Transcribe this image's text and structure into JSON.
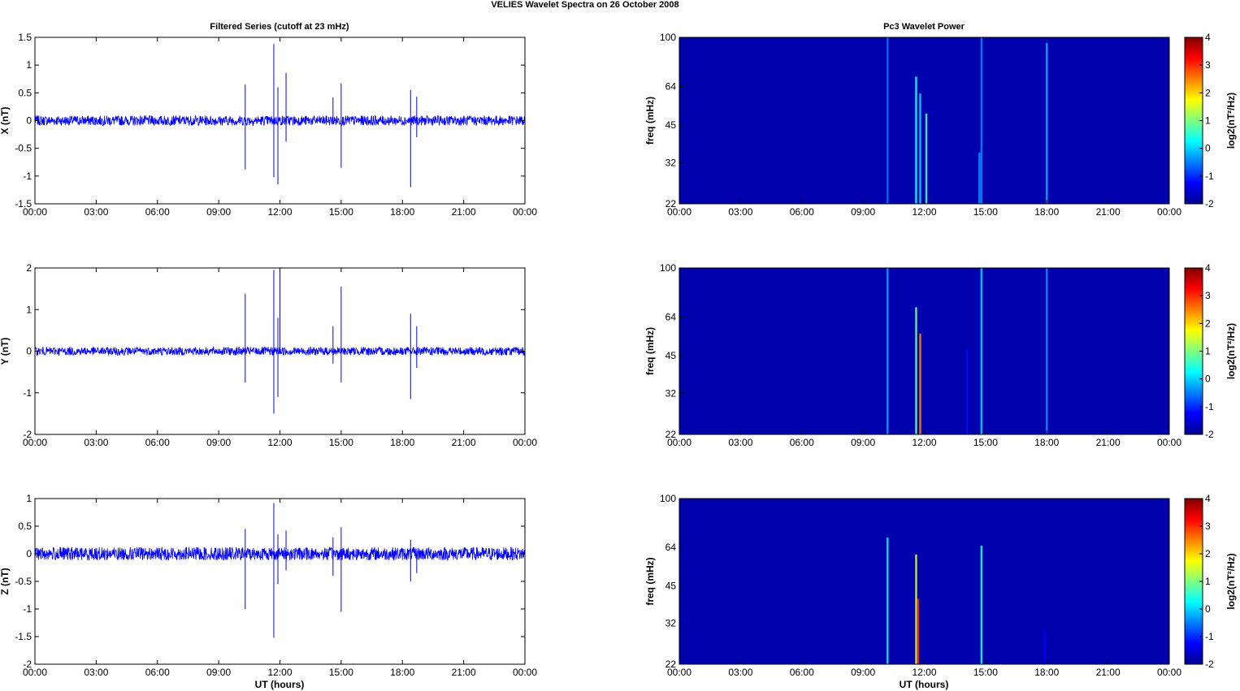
{
  "figure": {
    "suptitle": "VELIES Wavelet Spectra on 26 October   2008",
    "left_column_title": "Filtered Series (cutoff at 23 mHz)",
    "right_column_title": "Pc3 Wavelet Power",
    "xlabel": "UT (hours)"
  },
  "colors": {
    "trace": "#0000ff",
    "spectrum_background": "#00008f",
    "axes": "#000000"
  },
  "chart_data": [
    {
      "type": "line",
      "component": "X",
      "ylabel": "X (nT)",
      "xlim": [
        0,
        24
      ],
      "ylim": [
        -1.5,
        1.5
      ],
      "x_ticks": [
        "00:00",
        "03:00",
        "06:00",
        "09:00",
        "12:00",
        "15:00",
        "18:00",
        "21:00",
        "00:00"
      ],
      "y_ticks": [
        "1.5",
        "1",
        "0.5",
        "0",
        "-0.5",
        "-1",
        "-1.5"
      ],
      "noise_band_nT": 0.09,
      "series": [
        {
          "x": [
            10.3,
            10.3,
            11.7,
            11.7,
            11.9,
            11.9,
            12.3,
            12.3,
            14.6,
            15.0,
            15.0,
            18.4,
            18.4,
            18.7,
            18.7
          ],
          "y": [
            0.65,
            -0.88,
            1.38,
            -1.02,
            0.6,
            -1.15,
            0.86,
            -0.38,
            0.42,
            0.67,
            -0.85,
            0.55,
            -1.2,
            0.43,
            -0.3
          ]
        }
      ]
    },
    {
      "type": "line",
      "component": "Y",
      "ylabel": "Y (nT)",
      "xlim": [
        0,
        24
      ],
      "ylim": [
        -2,
        2
      ],
      "x_ticks": [
        "00:00",
        "03:00",
        "06:00",
        "09:00",
        "12:00",
        "15:00",
        "18:00",
        "21:00",
        "00:00"
      ],
      "y_ticks": [
        "2",
        "1",
        "0",
        "-1",
        "-2"
      ],
      "noise_band_nT": 0.1,
      "series": [
        {
          "x": [
            10.3,
            10.3,
            11.7,
            11.7,
            11.9,
            11.9,
            12.0,
            14.6,
            14.6,
            15.0,
            15.0,
            18.4,
            18.4,
            18.7,
            18.7
          ],
          "y": [
            1.38,
            -0.75,
            1.95,
            -1.5,
            0.8,
            -1.1,
            1.98,
            0.6,
            -0.3,
            1.55,
            -0.75,
            0.9,
            -1.15,
            0.6,
            -0.4
          ]
        }
      ]
    },
    {
      "type": "line",
      "component": "Z",
      "ylabel": "Z (nT)",
      "xlim": [
        0,
        24
      ],
      "ylim": [
        -2,
        1
      ],
      "x_ticks": [
        "00:00",
        "03:00",
        "06:00",
        "09:00",
        "12:00",
        "15:00",
        "18:00",
        "21:00",
        "00:00"
      ],
      "y_ticks": [
        "1",
        "0.5",
        "0",
        "-0.5",
        "-1",
        "-1.5",
        "-2"
      ],
      "noise_band_nT": 0.12,
      "series": [
        {
          "x": [
            10.3,
            10.3,
            11.7,
            11.7,
            11.9,
            11.9,
            12.3,
            12.3,
            14.6,
            14.6,
            15.0,
            15.0,
            18.4,
            18.4,
            18.7
          ],
          "y": [
            0.45,
            -1.0,
            0.92,
            -1.52,
            0.35,
            -0.55,
            0.42,
            -0.3,
            0.3,
            -0.4,
            0.48,
            -1.05,
            0.25,
            -0.5,
            -0.35
          ]
        }
      ]
    },
    {
      "type": "heatmap",
      "component": "X",
      "ylabel": "freq (mHz)",
      "xlim": [
        0,
        24
      ],
      "ylim": [
        22,
        100
      ],
      "y_scale": "log",
      "x_ticks": [
        "00:00",
        "03:00",
        "06:00",
        "09:00",
        "12:00",
        "15:00",
        "18:00",
        "21:00",
        "00:00"
      ],
      "y_ticks": [
        "100",
        "64",
        "45",
        "32",
        "22"
      ],
      "colorbar": {
        "label": "log2(nT²/Hz)",
        "range": [
          -2,
          4
        ],
        "ticks": [
          "4",
          "3",
          "2",
          "1",
          "0",
          "-1",
          "-2"
        ]
      },
      "background_value": -1.8,
      "streaks": [
        {
          "x": 10.2,
          "f_max": 100,
          "value": -0.6
        },
        {
          "x": 11.6,
          "f_max": 70,
          "value": 0.4
        },
        {
          "x": 11.8,
          "f_max": 60,
          "value": 0.0
        },
        {
          "x": 12.1,
          "f_max": 50,
          "value": 0.6
        },
        {
          "x": 14.7,
          "f_max": 35,
          "value": -0.4
        },
        {
          "x": 14.8,
          "f_max": 100,
          "value": -0.5
        },
        {
          "x": 18.0,
          "f_max": 95,
          "value": -0.2
        }
      ]
    },
    {
      "type": "heatmap",
      "component": "Y",
      "ylabel": "freq (mHz)",
      "xlim": [
        0,
        24
      ],
      "ylim": [
        22,
        100
      ],
      "y_scale": "log",
      "x_ticks": [
        "00:00",
        "03:00",
        "06:00",
        "09:00",
        "12:00",
        "15:00",
        "18:00",
        "21:00",
        "00:00"
      ],
      "y_ticks": [
        "100",
        "64",
        "45",
        "32",
        "22"
      ],
      "colorbar": {
        "label": "log2(nT²/Hz)",
        "range": [
          -2,
          4
        ],
        "ticks": [
          "4",
          "3",
          "2",
          "1",
          "0",
          "-1",
          "-2"
        ]
      },
      "background_value": -1.8,
      "streaks": [
        {
          "x": 10.2,
          "f_max": 100,
          "value": -0.3
        },
        {
          "x": 11.6,
          "f_max": 70,
          "value": 0.9
        },
        {
          "x": 11.8,
          "f_max": 55,
          "value": 2.5
        },
        {
          "x": 14.1,
          "f_max": 48,
          "value": -1.2
        },
        {
          "x": 14.8,
          "f_max": 100,
          "value": 0.0
        },
        {
          "x": 18.0,
          "f_max": 100,
          "value": -0.4
        }
      ]
    },
    {
      "type": "heatmap",
      "component": "Z",
      "ylabel": "freq (mHz)",
      "xlim": [
        0,
        24
      ],
      "ylim": [
        22,
        100
      ],
      "y_scale": "log",
      "x_ticks": [
        "00:00",
        "03:00",
        "06:00",
        "09:00",
        "12:00",
        "15:00",
        "18:00",
        "21:00",
        "00:00"
      ],
      "y_ticks": [
        "100",
        "64",
        "45",
        "32",
        "22"
      ],
      "colorbar": {
        "label": "log2(nT²/Hz)",
        "range": [
          -2,
          4
        ],
        "ticks": [
          "4",
          "3",
          "2",
          "1",
          "0",
          "-1",
          "-2"
        ]
      },
      "background_value": -1.8,
      "streaks": [
        {
          "x": 10.2,
          "f_max": 70,
          "value": 0.2
        },
        {
          "x": 11.6,
          "f_max": 60,
          "value": 1.5
        },
        {
          "x": 11.7,
          "f_max": 40,
          "value": 3.0
        },
        {
          "x": 14.8,
          "f_max": 65,
          "value": 0.4
        },
        {
          "x": 17.9,
          "f_max": 30,
          "value": -1.3
        }
      ]
    }
  ]
}
